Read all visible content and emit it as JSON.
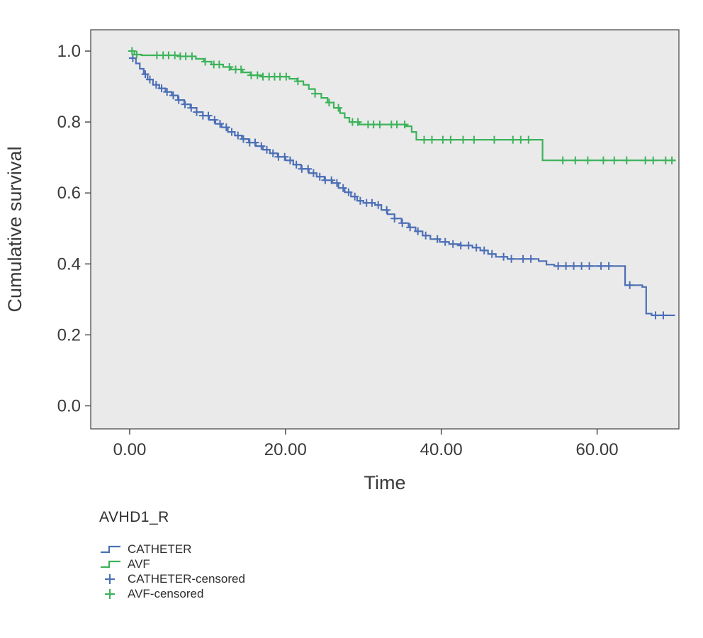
{
  "colors": {
    "catheter": "#4C6FB6",
    "avf": "#3CB35A",
    "axis_text": "#3a3a3a",
    "frame": "#4d4d4d",
    "plot_bg": "#eaeaea"
  },
  "chart_data": {
    "type": "line",
    "subtype": "kaplan-meier-step",
    "title": "",
    "xlabel": "Time",
    "ylabel": "Cumulative survival",
    "xlim": [
      -5,
      70.5
    ],
    "ylim": [
      -0.065,
      1.06
    ],
    "grid": false,
    "legend_position": "bottom-left",
    "xticks": [
      {
        "v": 0,
        "label": "0.00"
      },
      {
        "v": 20,
        "label": "20.00"
      },
      {
        "v": 40,
        "label": "40.00"
      },
      {
        "v": 60,
        "label": "60.00"
      }
    ],
    "yticks": [
      {
        "v": 0.0,
        "label": "0.0"
      },
      {
        "v": 0.2,
        "label": "0.2"
      },
      {
        "v": 0.4,
        "label": "0.4"
      },
      {
        "v": 0.6,
        "label": "0.6"
      },
      {
        "v": 0.8,
        "label": "0.8"
      },
      {
        "v": 1.0,
        "label": "1.0"
      }
    ],
    "series": [
      {
        "name": "CATHETER",
        "color": "#4C6FB6",
        "points": [
          [
            0,
            0.98
          ],
          [
            0.8,
            0.965
          ],
          [
            1.3,
            0.95
          ],
          [
            1.8,
            0.935
          ],
          [
            2.3,
            0.92
          ],
          [
            3.0,
            0.905
          ],
          [
            3.8,
            0.895
          ],
          [
            4.6,
            0.885
          ],
          [
            5.4,
            0.875
          ],
          [
            6.2,
            0.862
          ],
          [
            7.0,
            0.85
          ],
          [
            7.8,
            0.84
          ],
          [
            8.6,
            0.828
          ],
          [
            9.4,
            0.818
          ],
          [
            10.2,
            0.806
          ],
          [
            11.0,
            0.795
          ],
          [
            11.8,
            0.785
          ],
          [
            12.6,
            0.772
          ],
          [
            13.5,
            0.762
          ],
          [
            14.4,
            0.752
          ],
          [
            15.3,
            0.742
          ],
          [
            16.2,
            0.732
          ],
          [
            17.1,
            0.722
          ],
          [
            18.0,
            0.712
          ],
          [
            19.0,
            0.702
          ],
          [
            20.0,
            0.692
          ],
          [
            21.0,
            0.68
          ],
          [
            22.0,
            0.668
          ],
          [
            23.0,
            0.656
          ],
          [
            24.0,
            0.646
          ],
          [
            25.0,
            0.636
          ],
          [
            26.0,
            0.628
          ],
          [
            26.8,
            0.614
          ],
          [
            27.6,
            0.602
          ],
          [
            28.4,
            0.59
          ],
          [
            29.2,
            0.578
          ],
          [
            30.0,
            0.572
          ],
          [
            31.5,
            0.566
          ],
          [
            32.3,
            0.552
          ],
          [
            33.1,
            0.54
          ],
          [
            34.0,
            0.528
          ],
          [
            34.9,
            0.515
          ],
          [
            35.8,
            0.503
          ],
          [
            36.7,
            0.492
          ],
          [
            37.6,
            0.48
          ],
          [
            38.6,
            0.47
          ],
          [
            39.8,
            0.462
          ],
          [
            41.0,
            0.456
          ],
          [
            42.5,
            0.452
          ],
          [
            44.0,
            0.446
          ],
          [
            45.0,
            0.438
          ],
          [
            46.0,
            0.428
          ],
          [
            47.0,
            0.42
          ],
          [
            48.5,
            0.414
          ],
          [
            52.5,
            0.408
          ],
          [
            53.5,
            0.398
          ],
          [
            54.5,
            0.394
          ],
          [
            63.0,
            0.394
          ],
          [
            63.6,
            0.34
          ],
          [
            65.8,
            0.335
          ],
          [
            66.3,
            0.26
          ],
          [
            67.0,
            0.255
          ],
          [
            70,
            0.255
          ]
        ],
        "censored": [
          0.4,
          2.0,
          2.6,
          3.4,
          4.1,
          4.8,
          5.6,
          6.3,
          7.1,
          7.9,
          8.6,
          9.4,
          10.1,
          10.9,
          11.6,
          12.4,
          13.1,
          13.9,
          14.6,
          15.4,
          16.1,
          16.9,
          17.6,
          18.4,
          19.1,
          19.9,
          20.6,
          21.4,
          22.1,
          22.9,
          23.6,
          24.4,
          25.1,
          25.9,
          26.6,
          27.4,
          28.1,
          28.9,
          29.6,
          30.4,
          31.1,
          31.9,
          33.0,
          34.0,
          35.0,
          36.0,
          37.0,
          38.0,
          39.5,
          40.5,
          41.5,
          42.5,
          43.5,
          44.5,
          45.5,
          46.5,
          48.0,
          49.0,
          50.5,
          51.5,
          55.0,
          56.0,
          57.0,
          58.0,
          59.0,
          60.5,
          61.5,
          64.2,
          67.5,
          68.5
        ]
      },
      {
        "name": "AVF",
        "color": "#3CB35A",
        "points": [
          [
            0,
            1.0
          ],
          [
            0.6,
            0.99
          ],
          [
            1.5,
            0.988
          ],
          [
            6.5,
            0.985
          ],
          [
            8.5,
            0.978
          ],
          [
            9.5,
            0.97
          ],
          [
            10.5,
            0.962
          ],
          [
            12.0,
            0.955
          ],
          [
            13.0,
            0.948
          ],
          [
            14.5,
            0.94
          ],
          [
            15.5,
            0.932
          ],
          [
            17.0,
            0.928
          ],
          [
            20.5,
            0.922
          ],
          [
            21.5,
            0.915
          ],
          [
            22.3,
            0.905
          ],
          [
            23.0,
            0.893
          ],
          [
            23.8,
            0.88
          ],
          [
            24.6,
            0.868
          ],
          [
            25.4,
            0.855
          ],
          [
            26.2,
            0.84
          ],
          [
            27.0,
            0.825
          ],
          [
            27.6,
            0.812
          ],
          [
            28.2,
            0.8
          ],
          [
            29.5,
            0.793
          ],
          [
            35.5,
            0.788
          ],
          [
            36.2,
            0.772
          ],
          [
            36.8,
            0.75
          ],
          [
            52.5,
            0.75
          ],
          [
            53.0,
            0.692
          ],
          [
            70,
            0.692
          ]
        ],
        "censored": [
          0.3,
          0.9,
          3.5,
          4.3,
          5.0,
          5.8,
          6.5,
          7.2,
          8.0,
          9.7,
          10.8,
          11.5,
          12.8,
          13.6,
          14.3,
          15.6,
          16.4,
          17.1,
          17.9,
          18.6,
          19.3,
          20.1,
          21.6,
          23.8,
          25.6,
          26.8,
          28.6,
          29.3,
          30.6,
          31.3,
          32.1,
          33.6,
          34.3,
          35.3,
          37.8,
          38.8,
          40.2,
          41.2,
          42.8,
          44.2,
          46.8,
          49.2,
          50.2,
          51.2,
          55.6,
          57.2,
          58.8,
          60.8,
          62.2,
          63.8,
          66.2,
          67.2,
          68.8,
          69.6
        ]
      }
    ]
  },
  "legend": {
    "title": "AVHD1_R",
    "items": [
      {
        "type": "step",
        "color": "#4C6FB6",
        "label": "CATHETER"
      },
      {
        "type": "step",
        "color": "#3CB35A",
        "label": "AVF"
      },
      {
        "type": "cross",
        "color": "#4C6FB6",
        "label": "CATHETER-censored"
      },
      {
        "type": "cross",
        "color": "#3CB35A",
        "label": "AVF-censored"
      }
    ]
  }
}
